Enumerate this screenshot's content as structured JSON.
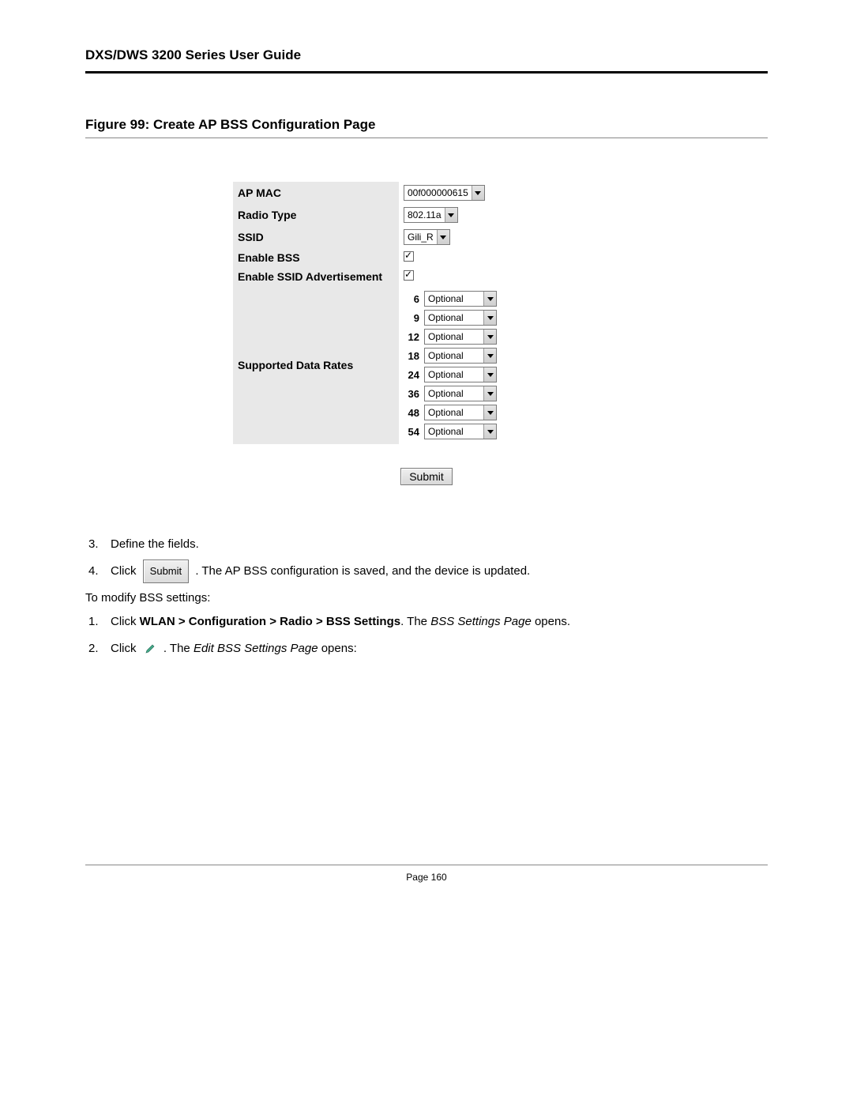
{
  "header": {
    "title": "DXS/DWS 3200 Series User Guide"
  },
  "figure": {
    "caption": "Figure 99:  Create AP BSS Configuration Page"
  },
  "form": {
    "ap_mac": {
      "label": "AP MAC",
      "value": "00f000000615"
    },
    "radio_type": {
      "label": "Radio Type",
      "value": "802.11a"
    },
    "ssid": {
      "label": "SSID",
      "value": "Gili_R"
    },
    "enable_bss": {
      "label": "Enable BSS",
      "checked": true
    },
    "enable_ssid_ad": {
      "label": "Enable SSID Advertisement",
      "checked": true
    },
    "rates_label": "Supported Data Rates",
    "rates": [
      {
        "num": "6",
        "value": "Optional"
      },
      {
        "num": "9",
        "value": "Optional"
      },
      {
        "num": "12",
        "value": "Optional"
      },
      {
        "num": "18",
        "value": "Optional"
      },
      {
        "num": "24",
        "value": "Optional"
      },
      {
        "num": "36",
        "value": "Optional"
      },
      {
        "num": "48",
        "value": "Optional"
      },
      {
        "num": "54",
        "value": "Optional"
      }
    ],
    "submit_label": "Submit"
  },
  "steps": {
    "s3_num": "3.",
    "s3_text": "Define the fields.",
    "s4_num": "4.",
    "s4_pre": "Click ",
    "inline_submit": "Submit",
    "s4_post": " . The AP BSS configuration is saved, and the device is updated.",
    "modify_heading": "To modify BSS settings:",
    "m1_num": "1.",
    "m1_pre": "Click ",
    "m1_path": "WLAN > Configuration > Radio > BSS Settings",
    "m1_mid": ".  The ",
    "m1_page": "BSS Settings Page",
    "m1_post": " opens.",
    "m2_num": "2.",
    "m2_pre": "Click  ",
    "m2_mid": " . The ",
    "m2_page": "Edit BSS Settings Page",
    "m2_post": " opens:"
  },
  "footer": {
    "page": "Page 160"
  }
}
